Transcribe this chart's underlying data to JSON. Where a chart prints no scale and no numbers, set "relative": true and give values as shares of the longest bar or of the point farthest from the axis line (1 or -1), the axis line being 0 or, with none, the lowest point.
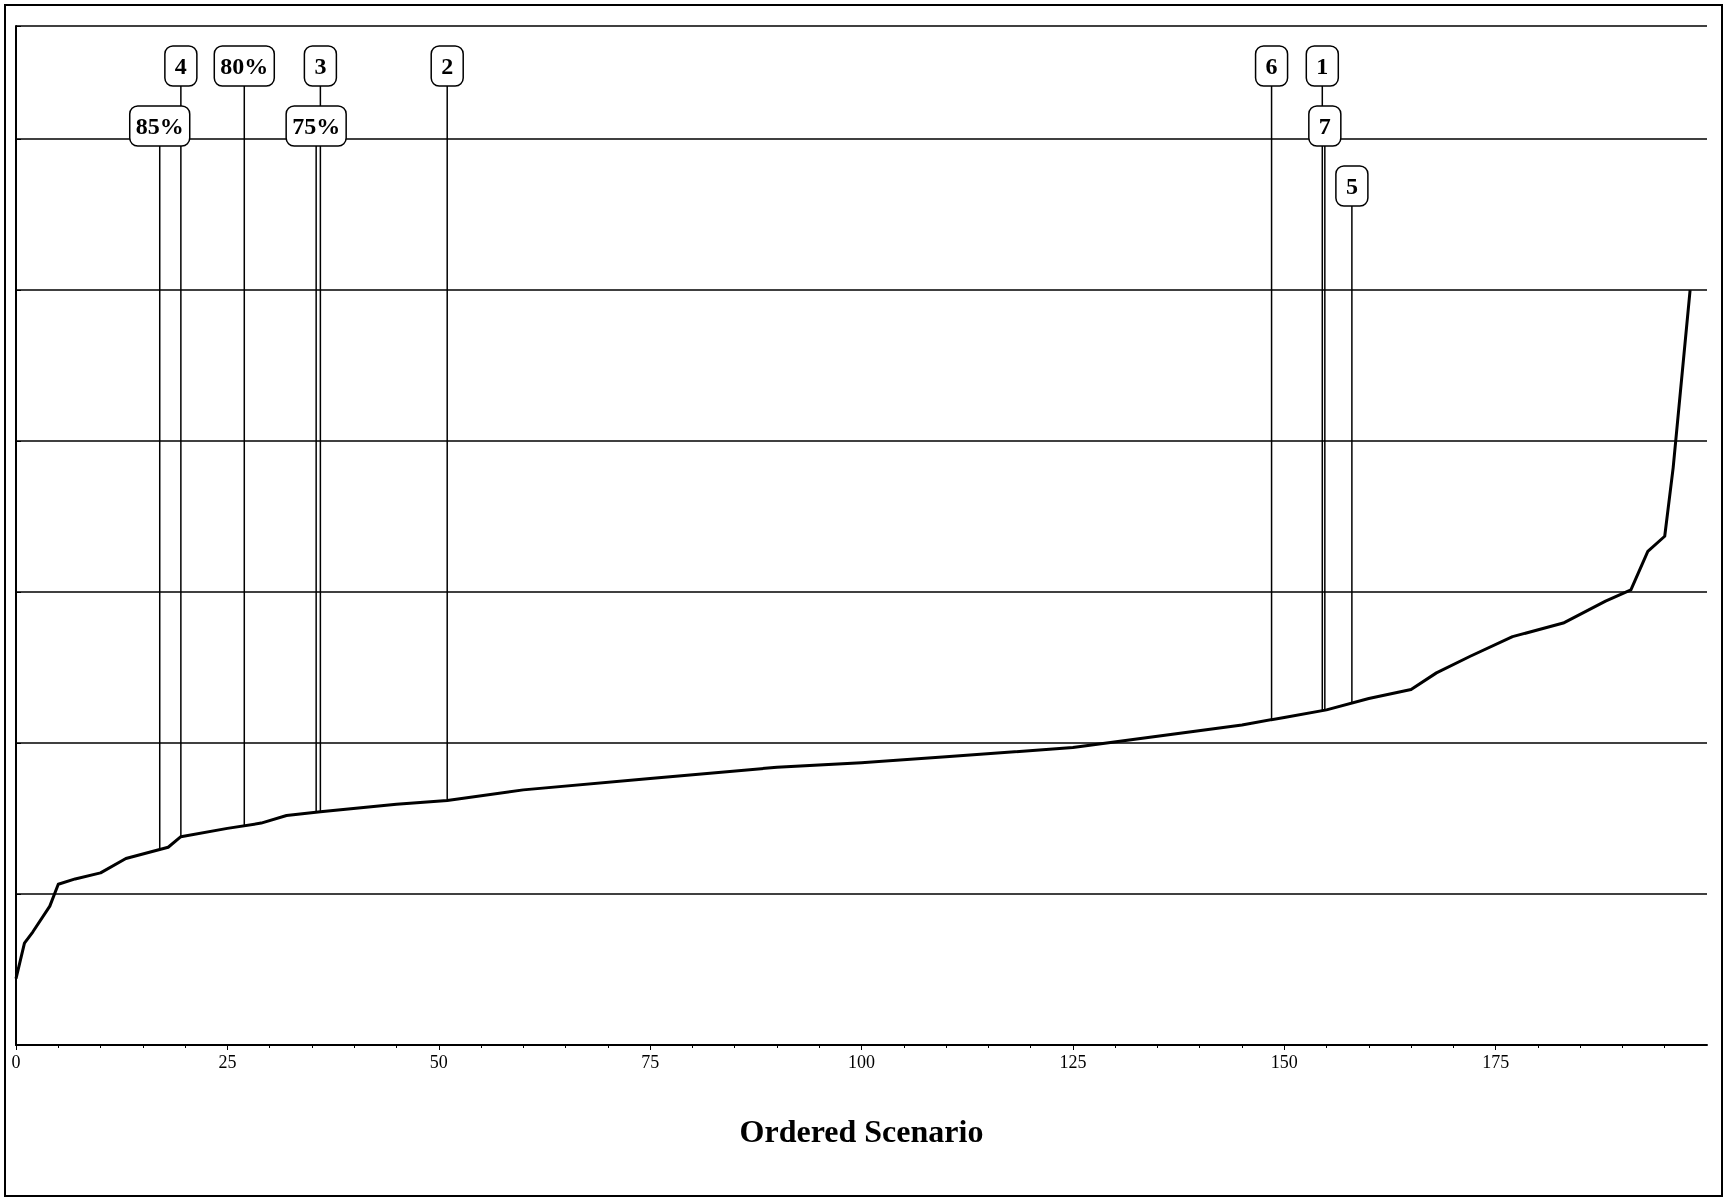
{
  "chart_data": {
    "type": "line",
    "xlabel": "Ordered Scenario",
    "relative": true,
    "color": "#000000",
    "grid": "y",
    "tick_labels": "x",
    "marker": "none",
    "line_style": "solid",
    "xlim": [
      0,
      200
    ],
    "xticks": [
      0,
      25,
      50,
      75,
      100,
      125,
      150,
      175
    ],
    "x": [
      0,
      1,
      2,
      4,
      5,
      7,
      10,
      13,
      16,
      18,
      19.5,
      25,
      29,
      32,
      36,
      45,
      51,
      60,
      75,
      90,
      100,
      110,
      125,
      137,
      145,
      150,
      155,
      160,
      165,
      168,
      172,
      177,
      183,
      188,
      191,
      193,
      195,
      196,
      198
    ],
    "values": [
      0.088,
      0.135,
      0.15,
      0.184,
      0.213,
      0.22,
      0.228,
      0.247,
      0.256,
      0.262,
      0.276,
      0.287,
      0.294,
      0.304,
      0.309,
      0.319,
      0.324,
      0.338,
      0.353,
      0.368,
      0.374,
      0.382,
      0.394,
      0.412,
      0.424,
      0.434,
      0.444,
      0.459,
      0.471,
      0.493,
      0.515,
      0.541,
      0.559,
      0.588,
      0.603,
      0.654,
      0.674,
      0.765,
      1.0
    ],
    "annotations": [
      {
        "text": "4",
        "x": 19.5,
        "y": 0.276
      },
      {
        "text": "3",
        "x": 36,
        "y": 0.309
      },
      {
        "text": "2",
        "x": 51,
        "y": 0.324
      },
      {
        "text": "6",
        "x": 148.5,
        "y": 0.431
      },
      {
        "text": "1",
        "x": 154.5,
        "y": 0.443
      },
      {
        "text": "7",
        "x": 154.8,
        "y": 0.443
      },
      {
        "text": "5",
        "x": 158,
        "y": 0.453
      },
      {
        "text": "85%",
        "x": 17,
        "y": 0.259
      },
      {
        "text": "80%",
        "x": 27,
        "y": 0.29
      },
      {
        "text": "75%",
        "x": 35.5,
        "y": 0.308
      }
    ]
  }
}
